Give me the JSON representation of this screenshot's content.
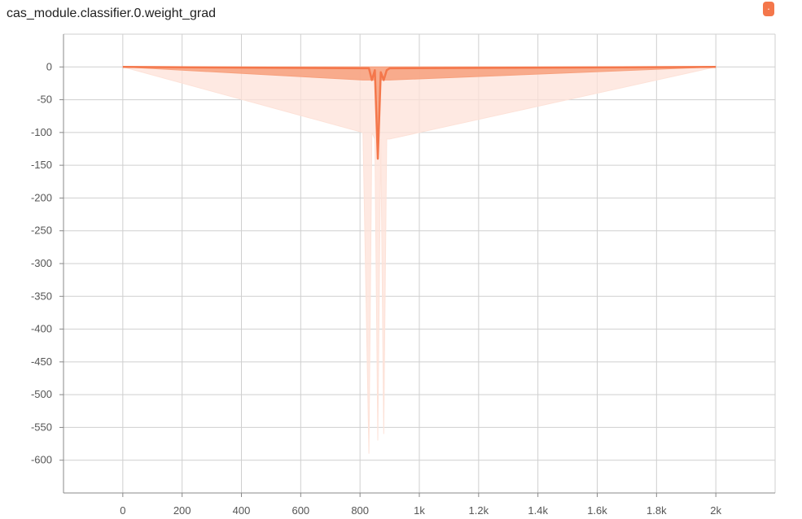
{
  "title": "cas_module.classifier.0.weight_grad",
  "badge": {
    "label": "·",
    "color": "#f4774b"
  },
  "colors": {
    "main": "#f4774b",
    "band_dark": "#f7a07d",
    "band_light": "#fde2d8",
    "grid": "#cfcfcf"
  },
  "chart_data": {
    "type": "area",
    "title": "cas_module.classifier.0.weight_grad",
    "xlabel": "",
    "ylabel": "",
    "xlim": [
      -200,
      2200
    ],
    "ylim": [
      -650,
      50
    ],
    "grid": true,
    "x_ticks": [
      0,
      200,
      400,
      600,
      800,
      1000,
      1200,
      1400,
      1600,
      1800,
      2000
    ],
    "x_tick_labels": [
      "0",
      "200",
      "400",
      "600",
      "800",
      "1k",
      "1.2k",
      "1.4k",
      "1.6k",
      "1.8k",
      "2k"
    ],
    "y_ticks": [
      0,
      -50,
      -100,
      -150,
      -200,
      -250,
      -300,
      -350,
      -400,
      -450,
      -500,
      -550,
      -600
    ],
    "y_tick_labels": [
      "0",
      "-50",
      "-100",
      "-150",
      "-200",
      "-250",
      "-300",
      "-350",
      "-400",
      "-450",
      "-500",
      "-550",
      "-600"
    ],
    "series": [
      {
        "x": [
          0,
          810,
          830,
          840,
          850,
          860,
          870,
          880,
          890,
          900,
          2000
        ],
        "median": [
          0,
          -2,
          -2,
          -20,
          -5,
          -140,
          -8,
          -20,
          -5,
          -2,
          0
        ],
        "band_inner_low": [
          0,
          -20,
          -20,
          -20,
          -20,
          -140,
          -20,
          -20,
          -20,
          -20,
          0
        ],
        "band_outer_low": [
          0,
          -100,
          -590,
          -100,
          -110,
          -570,
          -110,
          -560,
          -110,
          -110,
          0
        ]
      }
    ]
  }
}
